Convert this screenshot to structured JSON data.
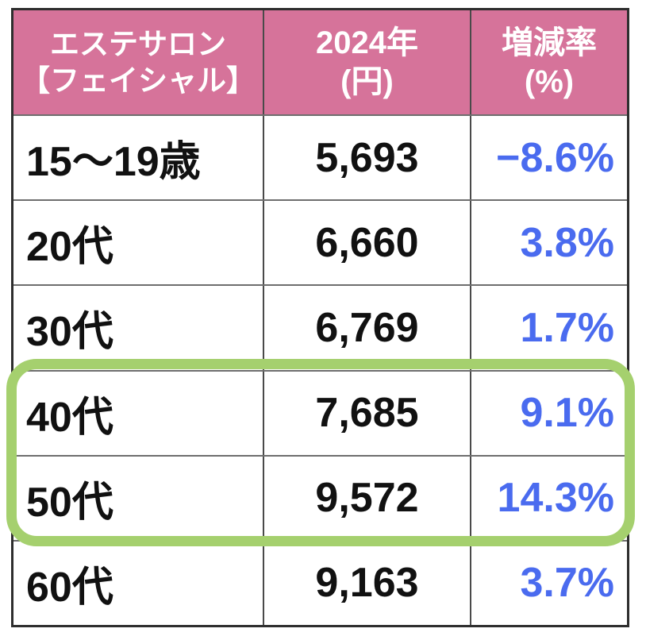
{
  "table": {
    "header": {
      "col1_line1": "エステサロン",
      "col1_line2": "【フェイシャル】",
      "col2_line1": "2024年",
      "col2_line2": "(円)",
      "col3_line1": "増減率",
      "col3_line2": "(%)"
    },
    "rows": [
      {
        "age": "15〜19歳",
        "price": "5,693",
        "rate": "−8.6%"
      },
      {
        "age": "20代",
        "price": "6,660",
        "rate": "3.8%"
      },
      {
        "age": "30代",
        "price": "6,769",
        "rate": "1.7%"
      },
      {
        "age": "40代",
        "price": "7,685",
        "rate": "9.1%"
      },
      {
        "age": "50代",
        "price": "9,572",
        "rate": "14.3%"
      },
      {
        "age": "60代",
        "price": "9,163",
        "rate": "3.7%"
      }
    ]
  },
  "colors": {
    "header_bg": "#d6739a",
    "header_text": "#ffffff",
    "body_text": "#111111",
    "rate_text": "#4a6bef",
    "highlight_border": "#a5d06e",
    "grid_line": "#6e6e6e",
    "outer_border": "#2e2e2e"
  },
  "chart_data": {
    "type": "table",
    "title": "エステサロン【フェイシャル】",
    "columns": [
      "エステサロン【フェイシャル】",
      "2024年(円)",
      "増減率(%)"
    ],
    "rows": [
      [
        "15〜19歳",
        5693,
        -8.6
      ],
      [
        "20代",
        6660,
        3.8
      ],
      [
        "30代",
        6769,
        1.7
      ],
      [
        "40代",
        7685,
        9.1
      ],
      [
        "50代",
        9572,
        14.3
      ],
      [
        "60代",
        9163,
        3.7
      ]
    ],
    "highlighted_rows": [
      "40代",
      "50代"
    ],
    "highlight_style": "thick green rounded outline around 40代 and 50代 rows"
  }
}
